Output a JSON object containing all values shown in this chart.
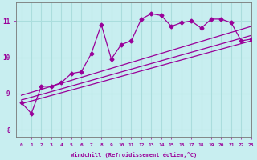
{
  "xlabel": "Windchill (Refroidissement éolien,°C)",
  "xlim": [
    -0.5,
    23
  ],
  "ylim": [
    7.8,
    11.5
  ],
  "xticks": [
    0,
    1,
    2,
    3,
    4,
    5,
    6,
    7,
    8,
    9,
    10,
    11,
    12,
    13,
    14,
    15,
    16,
    17,
    18,
    19,
    20,
    21,
    22,
    23
  ],
  "yticks": [
    8,
    9,
    10,
    11
  ],
  "bg_color": "#c8eef0",
  "line_color": "#990099",
  "grid_color": "#aadddd",
  "main_data_x": [
    0,
    1,
    2,
    3,
    4,
    5,
    6,
    7,
    8,
    9,
    10,
    11,
    12,
    13,
    14,
    15,
    16,
    17,
    18,
    19,
    20,
    21,
    22,
    23
  ],
  "main_data_y": [
    8.75,
    8.45,
    9.2,
    9.2,
    9.3,
    9.55,
    9.6,
    10.1,
    10.9,
    9.95,
    10.35,
    10.45,
    11.05,
    11.2,
    11.15,
    10.85,
    10.95,
    11.0,
    10.8,
    11.05,
    11.05,
    10.95,
    10.45,
    10.5
  ],
  "trend1_x": [
    0,
    23
  ],
  "trend1_y": [
    8.72,
    10.45
  ],
  "trend2_x": [
    0,
    23
  ],
  "trend2_y": [
    8.82,
    10.6
  ],
  "trend3_x": [
    0,
    23
  ],
  "trend3_y": [
    8.95,
    10.85
  ]
}
